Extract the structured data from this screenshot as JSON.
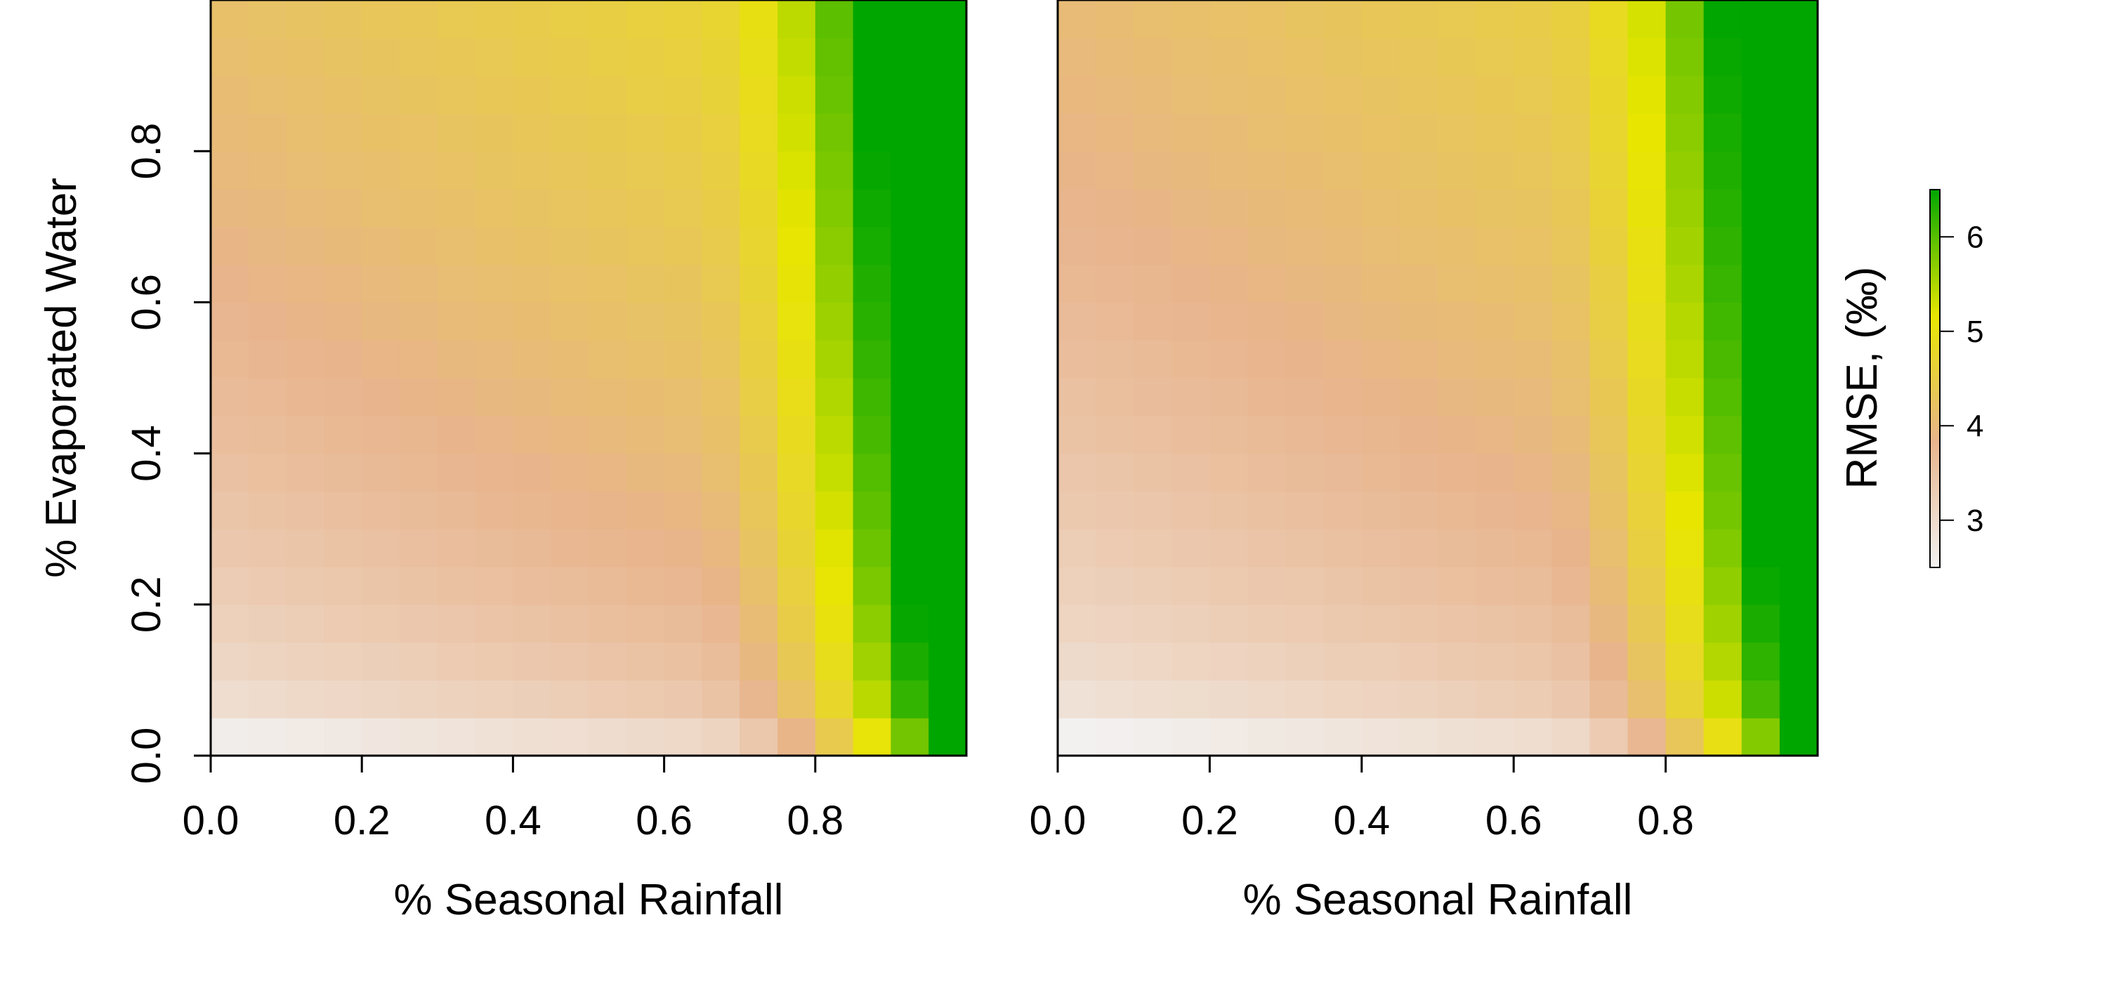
{
  "chart_data": [
    {
      "type": "heatmap",
      "title": "",
      "xlabel": "% Seasonal Rainfall",
      "ylabel": "% Evaporated Water",
      "xlim": [
        0,
        0.95
      ],
      "ylim": [
        0,
        0.95
      ],
      "xticks": [
        "0.0",
        "0.2",
        "0.4",
        "0.6",
        "0.8"
      ],
      "yticks": [
        "0.0",
        "0.2",
        "0.4",
        "0.6",
        "0.8"
      ],
      "grid": "20x20 cells, x and y from 0 to 0.95 in steps of 0.05",
      "value_range": [
        2.5,
        6.5
      ]
    },
    {
      "type": "heatmap",
      "title": "",
      "xlabel": "% Seasonal Rainfall",
      "ylabel": "",
      "xlim": [
        0,
        0.95
      ],
      "ylim": [
        0,
        0.95
      ],
      "xticks": [
        "0.0",
        "0.2",
        "0.4",
        "0.6",
        "0.8"
      ],
      "yticks": [],
      "grid": "20x20 cells, x and y from 0 to 0.95 in steps of 0.05",
      "value_range": [
        2.5,
        6.5
      ]
    }
  ],
  "colorbar": {
    "title": "RMSE, (‰)",
    "ticks": [
      "3",
      "4",
      "5",
      "6"
    ],
    "range": [
      2.5,
      6.5
    ],
    "colors": [
      "#f2f2f2",
      "#e8b48c",
      "#e8e600",
      "#00a600"
    ]
  }
}
